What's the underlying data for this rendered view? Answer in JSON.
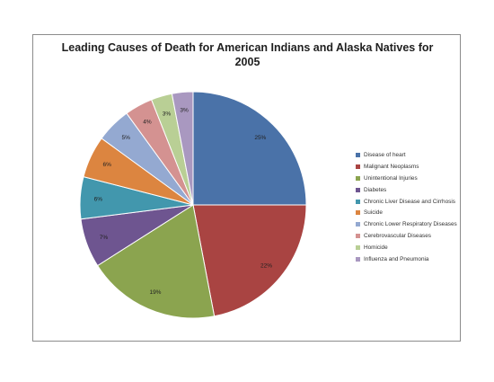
{
  "chart_data": {
    "type": "pie",
    "title_lines": [
      "Leading Causes of Death for American Indians and Alaska Natives for",
      "2005"
    ],
    "legend_position": "right",
    "slices": [
      {
        "label": "Disease of heart",
        "value": 25,
        "value_label": "25%",
        "color": "#4a72a8"
      },
      {
        "label": "Malignant Neoplasms",
        "value": 22,
        "value_label": "22%",
        "color": "#a94442"
      },
      {
        "label": "Unintentional Injuries",
        "value": 19,
        "value_label": "19%",
        "color": "#8ba44f"
      },
      {
        "label": "Diabetes",
        "value": 7,
        "value_label": "7%",
        "color": "#6e5590"
      },
      {
        "label": "Chronic Liver Disease and Cirrhosis",
        "value": 6,
        "value_label": "6%",
        "color": "#4297ad"
      },
      {
        "label": "Suicide",
        "value": 6,
        "value_label": "6%",
        "color": "#dc8540"
      },
      {
        "label": "Chronic Lower Respiratory Diseases",
        "value": 5,
        "value_label": "5%",
        "color": "#94a9d1"
      },
      {
        "label": "Cerebrovascular Diseases",
        "value": 4,
        "value_label": "4%",
        "color": "#d49291"
      },
      {
        "label": "Homicide",
        "value": 3,
        "value_label": "3%",
        "color": "#b9cf95"
      },
      {
        "label": "Influenza and Pneumonia",
        "value": 3,
        "value_label": "3%",
        "color": "#a998c0"
      }
    ]
  }
}
